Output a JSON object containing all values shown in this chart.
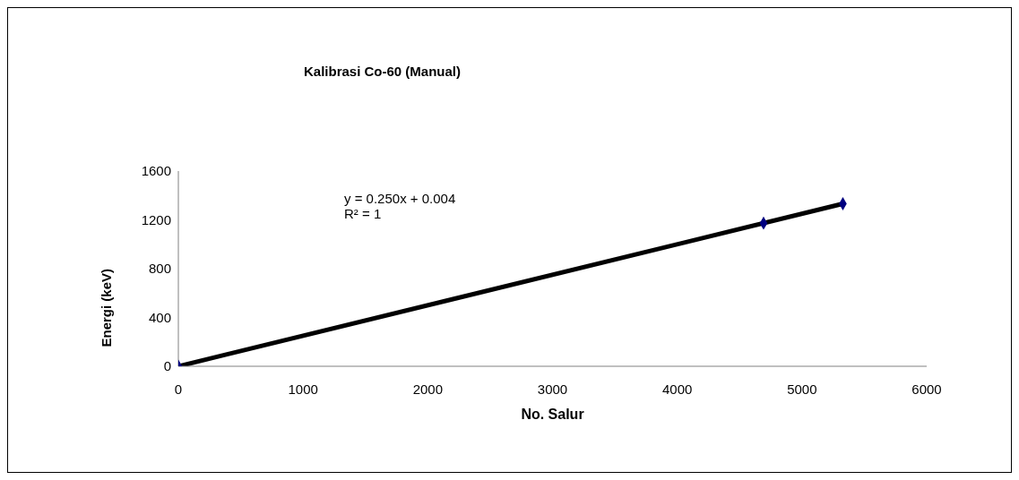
{
  "chart_data": {
    "type": "scatter",
    "title": "Kalibrasi Co-60 (Manual)",
    "xlabel": "No. Salur",
    "ylabel": "Energi (keV)",
    "series": [
      {
        "color": "#000080",
        "marker": "diamond",
        "x": [
          0,
          4692,
          5328
        ],
        "values": [
          0,
          1173,
          1332
        ]
      },
      {
        "type": "line",
        "color": "#000000",
        "x": [
          0,
          5328
        ],
        "values": [
          0,
          1332
        ]
      }
    ],
    "xlim": [
      0,
      6000
    ],
    "xticks": [
      0,
      1000,
      2000,
      3000,
      4000,
      5000,
      6000
    ],
    "ylim": [
      0,
      1600
    ],
    "yticks": [
      0,
      400,
      800,
      1200,
      1600
    ],
    "annotations": [
      "y = 0.250x + 0.004",
      "R² = 1"
    ]
  }
}
